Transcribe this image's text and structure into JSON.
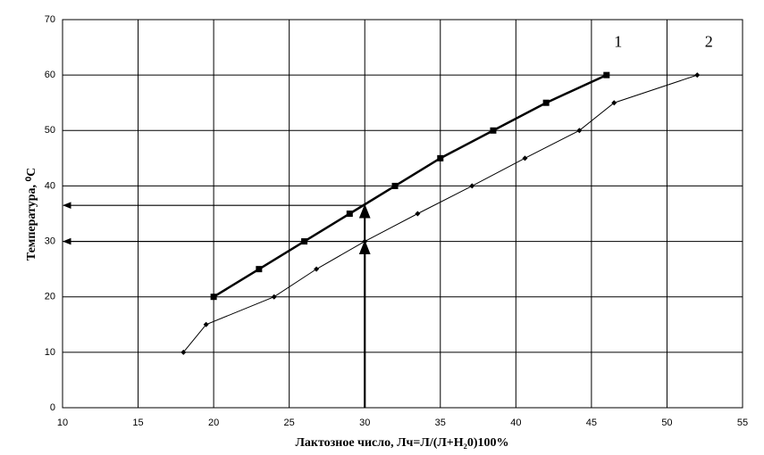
{
  "chart_data": {
    "type": "line",
    "xlabel": "Лактозное число, Лч=Л/(Л+Н₂0)100%",
    "ylabel": "Температура, ⁰C",
    "xlim": [
      10,
      55
    ],
    "xticks": [
      10,
      15,
      20,
      25,
      30,
      35,
      40,
      45,
      50,
      55
    ],
    "ylim": [
      0,
      70
    ],
    "yticks": [
      0,
      10,
      20,
      30,
      40,
      50,
      60,
      70
    ],
    "grid": true,
    "series": [
      {
        "name": "1",
        "color": "#000000",
        "marker": "square",
        "x": [
          20,
          23,
          26,
          29,
          32,
          35,
          38.5,
          42,
          46
        ],
        "values": [
          20,
          25,
          30,
          35,
          40,
          45,
          50,
          55,
          60
        ]
      },
      {
        "name": "2",
        "color": "#000000",
        "marker": "diamond",
        "x": [
          18,
          19.5,
          24,
          26.8,
          30,
          33.5,
          37.1,
          40.6,
          44.2,
          46.5,
          52
        ],
        "values": [
          10,
          15,
          20,
          25,
          30,
          35,
          40,
          45,
          50,
          55,
          60
        ]
      }
    ],
    "guides": [
      {
        "x": 30,
        "y": 36.5
      },
      {
        "x": 30,
        "y": 30
      }
    ]
  }
}
